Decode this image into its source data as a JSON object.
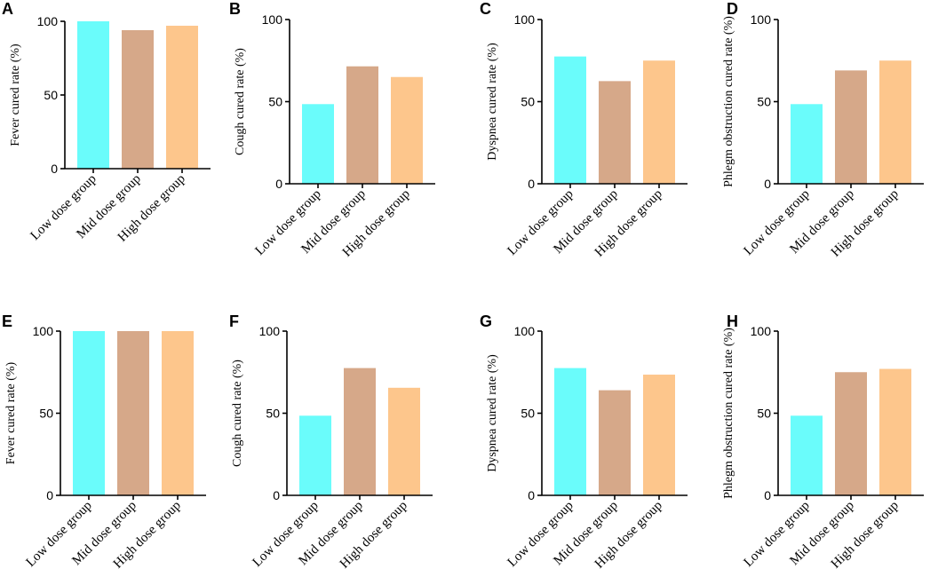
{
  "chart_data": [
    {
      "type": "bar",
      "panel": "A",
      "ylabel": "Fever cured  rate (%)",
      "categories": [
        "Low dose group",
        "Mid dose group",
        "High dose group"
      ],
      "values": [
        100,
        94,
        97
      ],
      "ylim": [
        0,
        100
      ],
      "yticks": [
        "0",
        "50",
        "100"
      ],
      "colors": [
        "#6afcfb",
        "#d6a889",
        "#fdc68c"
      ]
    },
    {
      "type": "bar",
      "panel": "B",
      "ylabel": "Cough cured  rate (%)",
      "categories": [
        "Low dose group",
        "Mid dose group",
        "High dose group"
      ],
      "values": [
        48.5,
        71.5,
        65
      ],
      "ylim": [
        0,
        100
      ],
      "yticks": [
        "0",
        "50",
        "100"
      ],
      "colors": [
        "#6afcfb",
        "#d6a889",
        "#fdc68c"
      ]
    },
    {
      "type": "bar",
      "panel": "C",
      "ylabel": "Dyspnea cured  rate (%)",
      "categories": [
        "Low dose group",
        "Mid dose group",
        "High dose group"
      ],
      "values": [
        77.5,
        62.5,
        75
      ],
      "ylim": [
        0,
        100
      ],
      "yticks": [
        "0",
        "50",
        "100"
      ],
      "colors": [
        "#6afcfb",
        "#d6a889",
        "#fdc68c"
      ]
    },
    {
      "type": "bar",
      "panel": "D",
      "ylabel": "Phlegm obstruction cured  rate (%)",
      "categories": [
        "Low dose group",
        "Mid dose group",
        "High dose group"
      ],
      "values": [
        48.5,
        69,
        75
      ],
      "ylim": [
        0,
        100
      ],
      "yticks": [
        "0",
        "50",
        "100"
      ],
      "colors": [
        "#6afcfb",
        "#d6a889",
        "#fdc68c"
      ]
    },
    {
      "type": "bar",
      "panel": "E",
      "ylabel": "Fever cured  rate (%)",
      "categories": [
        "Low dose group",
        "Mid dose group",
        "High dose group"
      ],
      "values": [
        100,
        100,
        100
      ],
      "ylim": [
        0,
        100
      ],
      "yticks": [
        "0",
        "50",
        "100"
      ],
      "colors": [
        "#6afcfb",
        "#d6a889",
        "#fdc68c"
      ]
    },
    {
      "type": "bar",
      "panel": "F",
      "ylabel": "Cough cured  rate (%)",
      "categories": [
        "Low dose group",
        "Mid dose group",
        "High dose group"
      ],
      "values": [
        48.5,
        77.5,
        65.5
      ],
      "ylim": [
        0,
        100
      ],
      "yticks": [
        "0",
        "50",
        "100"
      ],
      "colors": [
        "#6afcfb",
        "#d6a889",
        "#fdc68c"
      ]
    },
    {
      "type": "bar",
      "panel": "G",
      "ylabel": "Dyspnea cured  rate (%)",
      "categories": [
        "Low dose group",
        "Mid dose group",
        "High dose group"
      ],
      "values": [
        77.5,
        64,
        73.5
      ],
      "ylim": [
        0,
        100
      ],
      "yticks": [
        "0",
        "50",
        "100"
      ],
      "colors": [
        "#6afcfb",
        "#d6a889",
        "#fdc68c"
      ]
    },
    {
      "type": "bar",
      "panel": "H",
      "ylabel": "Phlegm obstruction cured  rate (%)",
      "categories": [
        "Low dose group",
        "Mid dose group",
        "High dose group"
      ],
      "values": [
        48.5,
        75,
        77
      ],
      "ylim": [
        0,
        100
      ],
      "yticks": [
        "0",
        "50",
        "100"
      ],
      "colors": [
        "#6afcfb",
        "#d6a889",
        "#fdc68c"
      ]
    }
  ]
}
